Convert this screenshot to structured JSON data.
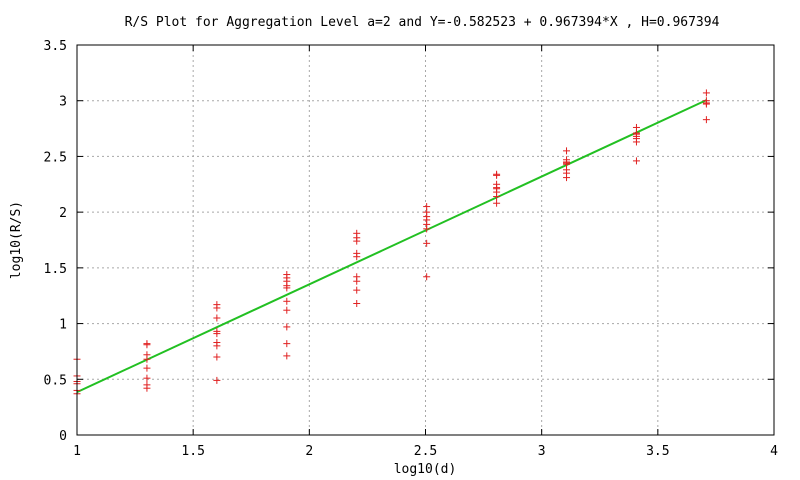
{
  "chart_data": {
    "type": "scatter",
    "title": "R/S Plot for Aggregation Level a=2 and Y=-0.582523 + 0.967394*X , H=0.967394",
    "xlabel": "log10(d)",
    "ylabel": "log10(R/S)",
    "xlim": [
      1,
      4
    ],
    "ylim": [
      0,
      3.5
    ],
    "xticks": [
      1,
      1.5,
      2,
      2.5,
      3,
      3.5,
      4
    ],
    "xtick_labels": [
      "1",
      "1.5",
      "2",
      "2.5",
      "3",
      "3.5",
      "4"
    ],
    "yticks": [
      0,
      0.5,
      1,
      1.5,
      2,
      2.5,
      3,
      3.5
    ],
    "ytick_labels": [
      "0",
      "0.5",
      "1",
      "1.5",
      "2",
      "2.5",
      "3",
      "3.5"
    ],
    "grid": true,
    "series": [
      {
        "type": "scatter",
        "marker": "+",
        "color": "#e02020",
        "points": [
          [
            1.0,
            0.68
          ],
          [
            1.0,
            0.53
          ],
          [
            1.0,
            0.48
          ],
          [
            1.0,
            0.46
          ],
          [
            1.0,
            0.4
          ],
          [
            1.0,
            0.37
          ],
          [
            1.301,
            0.82
          ],
          [
            1.301,
            0.81
          ],
          [
            1.301,
            0.72
          ],
          [
            1.301,
            0.68
          ],
          [
            1.301,
            0.6
          ],
          [
            1.301,
            0.51
          ],
          [
            1.301,
            0.45
          ],
          [
            1.301,
            0.42
          ],
          [
            1.602,
            1.17
          ],
          [
            1.602,
            1.14
          ],
          [
            1.602,
            1.05
          ],
          [
            1.602,
            0.93
          ],
          [
            1.602,
            0.91
          ],
          [
            1.602,
            0.83
          ],
          [
            1.602,
            0.8
          ],
          [
            1.602,
            0.7
          ],
          [
            1.602,
            0.49
          ],
          [
            1.903,
            1.44
          ],
          [
            1.903,
            1.41
          ],
          [
            1.903,
            1.38
          ],
          [
            1.903,
            1.34
          ],
          [
            1.903,
            1.32
          ],
          [
            1.903,
            1.2
          ],
          [
            1.903,
            1.12
          ],
          [
            1.903,
            0.97
          ],
          [
            1.903,
            0.82
          ],
          [
            1.903,
            0.71
          ],
          [
            2.204,
            1.81
          ],
          [
            2.204,
            1.77
          ],
          [
            2.204,
            1.74
          ],
          [
            2.204,
            1.63
          ],
          [
            2.204,
            1.6
          ],
          [
            2.204,
            1.42
          ],
          [
            2.204,
            1.38
          ],
          [
            2.204,
            1.3
          ],
          [
            2.204,
            1.18
          ],
          [
            2.505,
            2.05
          ],
          [
            2.505,
            2.0
          ],
          [
            2.505,
            1.96
          ],
          [
            2.505,
            1.93
          ],
          [
            2.505,
            1.89
          ],
          [
            2.505,
            1.85
          ],
          [
            2.505,
            1.72
          ],
          [
            2.505,
            1.42
          ],
          [
            2.806,
            2.34
          ],
          [
            2.806,
            2.33
          ],
          [
            2.806,
            2.25
          ],
          [
            2.806,
            2.22
          ],
          [
            2.806,
            2.21
          ],
          [
            2.806,
            2.18
          ],
          [
            2.806,
            2.14
          ],
          [
            2.806,
            2.08
          ],
          [
            3.107,
            2.55
          ],
          [
            3.107,
            2.47
          ],
          [
            3.107,
            2.45
          ],
          [
            3.107,
            2.44
          ],
          [
            3.107,
            2.43
          ],
          [
            3.107,
            2.38
          ],
          [
            3.107,
            2.35
          ],
          [
            3.107,
            2.31
          ],
          [
            3.408,
            2.76
          ],
          [
            3.408,
            2.71
          ],
          [
            3.408,
            2.7
          ],
          [
            3.408,
            2.68
          ],
          [
            3.408,
            2.66
          ],
          [
            3.408,
            2.63
          ],
          [
            3.408,
            2.46
          ],
          [
            3.709,
            3.07
          ],
          [
            3.709,
            3.0
          ],
          [
            3.709,
            2.98
          ],
          [
            3.709,
            2.97
          ],
          [
            3.709,
            2.83
          ]
        ]
      },
      {
        "type": "line",
        "color": "#22c022",
        "intercept": -0.582523,
        "slope": 0.967394,
        "x_range": [
          1.0,
          3.709
        ]
      }
    ]
  }
}
